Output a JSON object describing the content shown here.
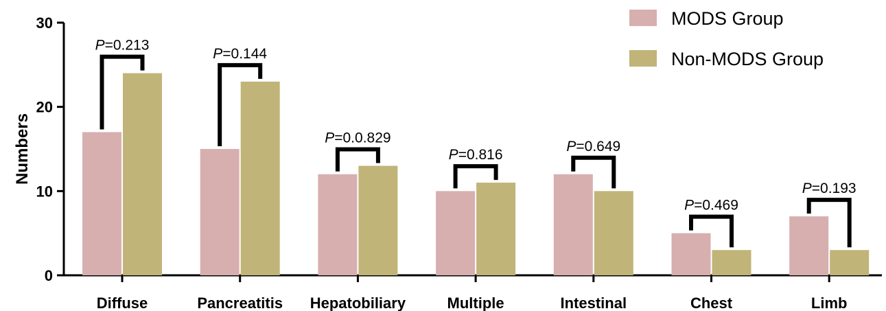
{
  "chart_data": {
    "type": "bar",
    "ylabel": "Numbers",
    "ylim": [
      0,
      30
    ],
    "yticks": [
      0,
      10,
      20,
      30
    ],
    "categories": [
      "Diffuse",
      "Pancreatitis",
      "Hepatobiliary",
      "Multiple",
      "Intestinal",
      "Chest",
      "Limb"
    ],
    "series": [
      {
        "name": "MODS Group",
        "color": "#d7afaf",
        "values": [
          17,
          15,
          12,
          10,
          12,
          5,
          7
        ]
      },
      {
        "name": "Non-MODS Group",
        "color": "#c0b478",
        "values": [
          24,
          23,
          13,
          11,
          10,
          3,
          3
        ]
      }
    ],
    "annotations": [
      {
        "prefix": "P",
        "value": "=0.213"
      },
      {
        "prefix": "P",
        "value": "=0.144"
      },
      {
        "prefix": "P",
        "value": "=0.0.829"
      },
      {
        "prefix": "P",
        "value": "=0.816"
      },
      {
        "prefix": "P",
        "value": "=0.649"
      },
      {
        "prefix": "P",
        "value": "=0.469"
      },
      {
        "prefix": "P",
        "value": "=0.193"
      }
    ],
    "legend_position": "top-right"
  }
}
